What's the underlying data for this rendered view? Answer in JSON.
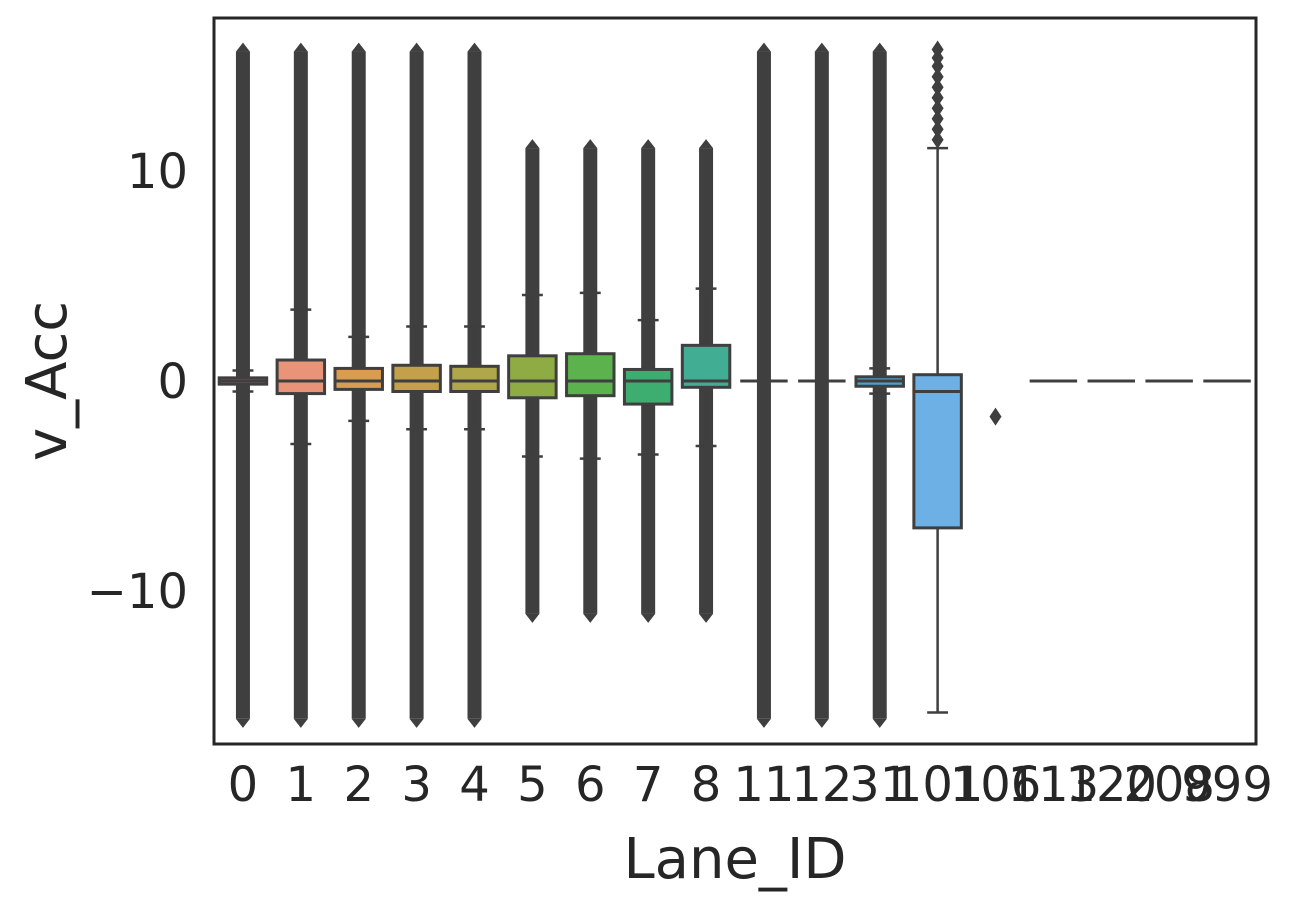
{
  "chart_data": {
    "type": "box",
    "xlabel": "Lane_ID",
    "ylabel": "v_Acc",
    "ylim": [
      -17.3,
      17.3
    ],
    "yticks": [
      -10,
      0,
      10
    ],
    "ytick_labels": [
      "−10",
      "0",
      "10"
    ],
    "grid": false,
    "categories": [
      "0",
      "1",
      "2",
      "3",
      "4",
      "5",
      "6",
      "7",
      "8",
      "11",
      "12",
      "31",
      "101",
      "106",
      "113",
      "120",
      "208",
      "999"
    ],
    "boxes": [
      {
        "lane": "0",
        "min": -0.5,
        "q1": -0.15,
        "median": 0.0,
        "q3": 0.15,
        "max": 0.5,
        "outlier_range": [
          -16.1,
          15.7
        ],
        "color": "#e8868e"
      },
      {
        "lane": "1",
        "min": -3.0,
        "q1": -0.6,
        "median": 0.0,
        "q3": 1.0,
        "max": 3.4,
        "outlier_range": [
          -16.1,
          15.7
        ],
        "color": "#e99378"
      },
      {
        "lane": "2",
        "min": -1.9,
        "q1": -0.4,
        "median": 0.0,
        "q3": 0.6,
        "max": 2.1,
        "outlier_range": [
          -16.1,
          15.7
        ],
        "color": "#d99d52"
      },
      {
        "lane": "3",
        "min": -2.3,
        "q1": -0.5,
        "median": 0.0,
        "q3": 0.75,
        "max": 2.6,
        "outlier_range": [
          -16.1,
          15.7
        ],
        "color": "#c4a04a"
      },
      {
        "lane": "4",
        "min": -2.3,
        "q1": -0.5,
        "median": 0.0,
        "q3": 0.7,
        "max": 2.6,
        "outlier_range": [
          -16.1,
          15.7
        ],
        "color": "#b0a64a"
      },
      {
        "lane": "5",
        "min": -3.6,
        "q1": -0.8,
        "median": 0.0,
        "q3": 1.2,
        "max": 4.1,
        "outlier_range": [
          -11.1,
          11.1
        ],
        "color": "#8fac44"
      },
      {
        "lane": "6",
        "min": -3.7,
        "q1": -0.7,
        "median": 0.0,
        "q3": 1.3,
        "max": 4.2,
        "outlier_range": [
          -11.1,
          11.1
        ],
        "color": "#5cb24c"
      },
      {
        "lane": "7",
        "min": -3.5,
        "q1": -1.1,
        "median": 0.0,
        "q3": 0.55,
        "max": 2.9,
        "outlier_range": [
          -11.1,
          11.1
        ],
        "color": "#3dae6f"
      },
      {
        "lane": "8",
        "min": -3.1,
        "q1": -0.3,
        "median": 0.0,
        "q3": 1.7,
        "max": 4.4,
        "outlier_range": [
          -11.1,
          11.1
        ],
        "color": "#41ae94"
      },
      {
        "lane": "11",
        "min": 0.0,
        "q1": 0.0,
        "median": 0.0,
        "q3": 0.0,
        "max": 0.0,
        "outlier_range": [
          -16.1,
          15.7
        ],
        "color": "#43aaa8"
      },
      {
        "lane": "12",
        "min": 0.0,
        "q1": 0.0,
        "median": 0.0,
        "q3": 0.0,
        "max": 0.0,
        "outlier_range": [
          -16.1,
          15.7
        ],
        "color": "#45a6b9"
      },
      {
        "lane": "31",
        "min": -0.6,
        "q1": -0.25,
        "median": 0.0,
        "q3": 0.2,
        "max": 0.6,
        "outlier_range": [
          -16.1,
          15.7
        ],
        "color": "#4aa2cb"
      },
      {
        "lane": "101",
        "min": -15.8,
        "q1": -7.0,
        "median": -0.5,
        "q3": 0.3,
        "max": 11.1,
        "outliers": [
          11.5,
          12.0,
          12.5,
          13.0,
          13.5,
          14.0,
          14.5,
          15.0,
          15.4,
          15.8
        ],
        "color": "#6cb0e6"
      },
      {
        "lane": "106",
        "min": null,
        "q1": null,
        "median": null,
        "q3": null,
        "max": null,
        "outliers": [
          -1.7
        ],
        "color": "#8fa6ea"
      },
      {
        "lane": "113",
        "min": 0.0,
        "q1": 0.0,
        "median": 0.0,
        "q3": 0.0,
        "max": 0.0,
        "color": "#a99ee8"
      },
      {
        "lane": "120",
        "min": 0.0,
        "q1": 0.0,
        "median": 0.0,
        "q3": 0.0,
        "max": 0.0,
        "color": "#c195e4"
      },
      {
        "lane": "208",
        "min": 0.0,
        "q1": 0.0,
        "median": 0.0,
        "q3": 0.0,
        "max": 0.0,
        "color": "#d88ed6"
      },
      {
        "lane": "999",
        "min": 0.0,
        "q1": 0.0,
        "median": 0.0,
        "q3": 0.0,
        "max": 0.0,
        "color": "#e787be"
      }
    ]
  }
}
